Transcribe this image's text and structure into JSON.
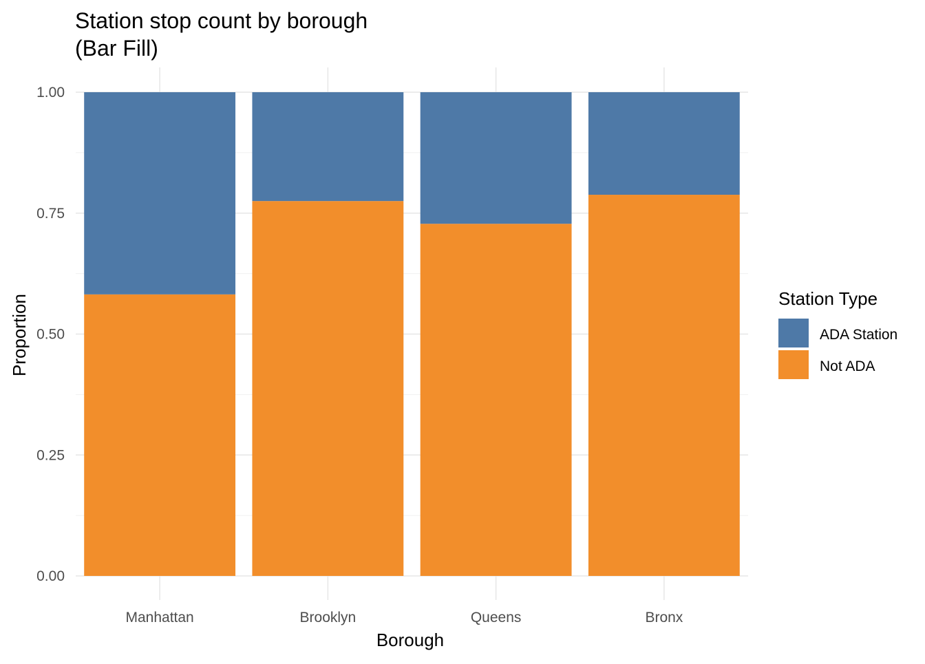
{
  "chart_data": {
    "type": "bar",
    "stacked": true,
    "position": "fill",
    "title": "Station stop count by borough",
    "subtitle": "(Bar Fill)",
    "xlabel": "Borough",
    "ylabel": "Proportion",
    "categories": [
      "Manhattan",
      "Brooklyn",
      "Queens",
      "Bronx"
    ],
    "series": [
      {
        "name": "Not ADA",
        "color": "#F28E2B",
        "values": [
          0.582,
          0.775,
          0.728,
          0.788
        ]
      },
      {
        "name": "ADA Station",
        "color": "#4E79A7",
        "values": [
          0.418,
          0.225,
          0.272,
          0.212
        ]
      }
    ],
    "ylim": [
      0,
      1
    ],
    "yticks": [
      "0.00",
      "0.25",
      "0.50",
      "0.75",
      "1.00"
    ],
    "ytick_values": [
      0,
      0.25,
      0.5,
      0.75,
      1.0
    ],
    "grid": true,
    "legend": {
      "title": "Station Type",
      "placement": "right",
      "entries": [
        {
          "label": "ADA Station",
          "color": "#4E79A7"
        },
        {
          "label": "Not ADA",
          "color": "#F28E2B"
        }
      ]
    }
  }
}
